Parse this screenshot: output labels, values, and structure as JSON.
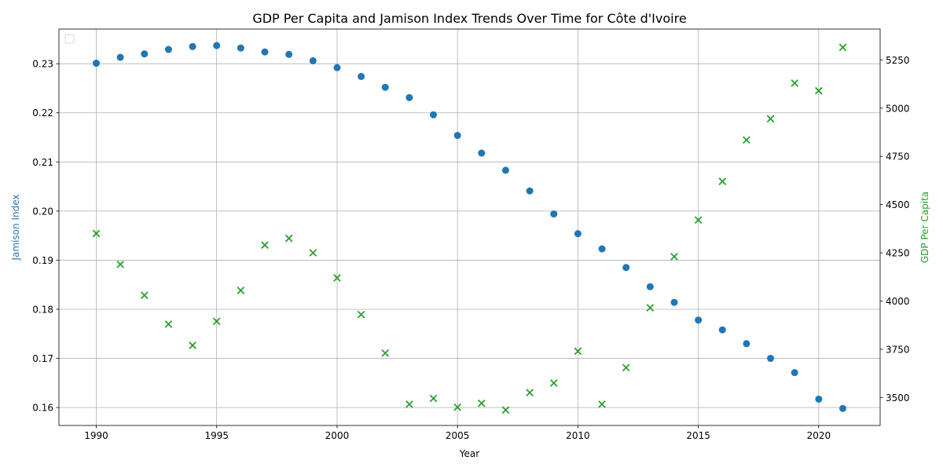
{
  "chart_data": {
    "type": "scatter",
    "title": "GDP Per Capita and Jamison Index Trends Over Time for Côte d'Ivoire",
    "xlabel": "Year",
    "ylabel_left": "Jamison Index",
    "ylabel_right": "GDP Per Capita",
    "xlim": [
      1988.45,
      2022.55
    ],
    "ylim_left": [
      0.15634,
      0.23706
    ],
    "ylim_right": [
      3355,
      5410
    ],
    "x_ticks": [
      1990,
      1995,
      2000,
      2005,
      2010,
      2015,
      2020
    ],
    "y_ticks_left": [
      0.16,
      0.17,
      0.18,
      0.19,
      0.2,
      0.21,
      0.22,
      0.23
    ],
    "y_ticks_right": [
      3500,
      3750,
      4000,
      4250,
      4500,
      4750,
      5000,
      5250
    ],
    "grid": true,
    "legend": "top-left (empty)",
    "x": [
      1990,
      1991,
      1992,
      1993,
      1994,
      1995,
      1996,
      1997,
      1998,
      1999,
      2000,
      2001,
      2002,
      2003,
      2004,
      2005,
      2006,
      2007,
      2008,
      2009,
      2010,
      2011,
      2012,
      2013,
      2014,
      2015,
      2016,
      2017,
      2018,
      2019,
      2020,
      2021
    ],
    "series": [
      {
        "axis": "left",
        "marker": "circle",
        "color": "#1f77b4",
        "values": [
          0.2301,
          0.2313,
          0.232,
          0.2329,
          0.2335,
          0.2337,
          0.2332,
          0.2324,
          0.2319,
          0.2306,
          0.2292,
          0.2274,
          0.2252,
          0.2231,
          0.2196,
          0.2154,
          0.2118,
          0.2083,
          0.2041,
          0.1994,
          0.1954,
          0.1923,
          0.1885,
          0.1846,
          0.1814,
          0.1778,
          0.1758,
          0.173,
          0.17,
          0.1671,
          0.1617,
          0.1598
        ]
      },
      {
        "axis": "right",
        "marker": "x",
        "color": "#2ca02c",
        "values": [
          4350,
          4190,
          4030,
          3880,
          3770,
          3895,
          4055,
          4290,
          4325,
          4250,
          4120,
          3930,
          3730,
          3465,
          3495,
          3450,
          3470,
          3435,
          3525,
          3575,
          3740,
          3465,
          3655,
          3965,
          4230,
          4420,
          4620,
          4835,
          4945,
          5130,
          5090,
          5315
        ]
      }
    ]
  }
}
